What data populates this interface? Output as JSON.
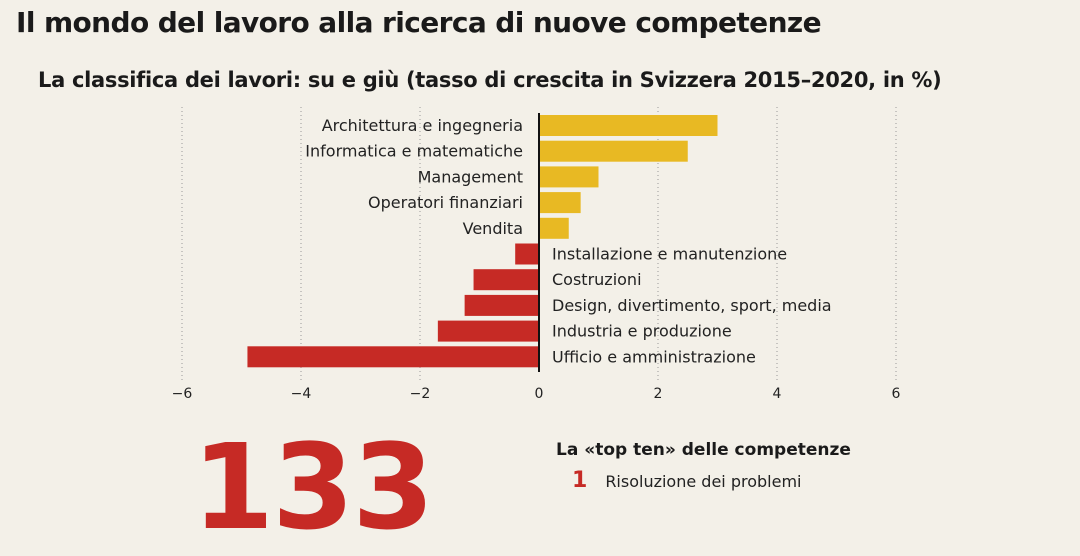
{
  "page": {
    "title": "Il mondo del lavoro alla ricerca di nuove competenze"
  },
  "chart_data": {
    "type": "bar",
    "orientation": "horizontal",
    "title": "La classifica dei lavori: su e giù (tasso di crescita in Svizzera 2015–2020, in %)",
    "categories": [
      "Architettura e ingegneria",
      "Informatica e matematiche",
      "Management",
      "Operatori finanziari",
      "Vendita",
      "Installazione e manutenzione",
      "Costruzioni",
      "Design, divertimento, sport, media",
      "Industria e produzione",
      "Ufficio e amministrazione"
    ],
    "values": [
      3.0,
      2.5,
      1.0,
      0.7,
      0.5,
      -0.4,
      -1.1,
      -1.25,
      -1.7,
      -4.9
    ],
    "xlim": [
      -6,
      6
    ],
    "xticks": [
      -6,
      -4,
      -2,
      0,
      2,
      4,
      6
    ],
    "xtick_labels": [
      "−6",
      "−4",
      "−2",
      "0",
      "2",
      "4",
      "6"
    ],
    "grid": "vertical dotted",
    "colors": {
      "positive": "#e8b923",
      "negative": "#c62a25"
    }
  },
  "infobox": {
    "big_number": "133",
    "top_ten_title": "La «top ten» delle competenze",
    "first_item_number": "1",
    "first_item_label": "Risoluzione dei problemi"
  }
}
